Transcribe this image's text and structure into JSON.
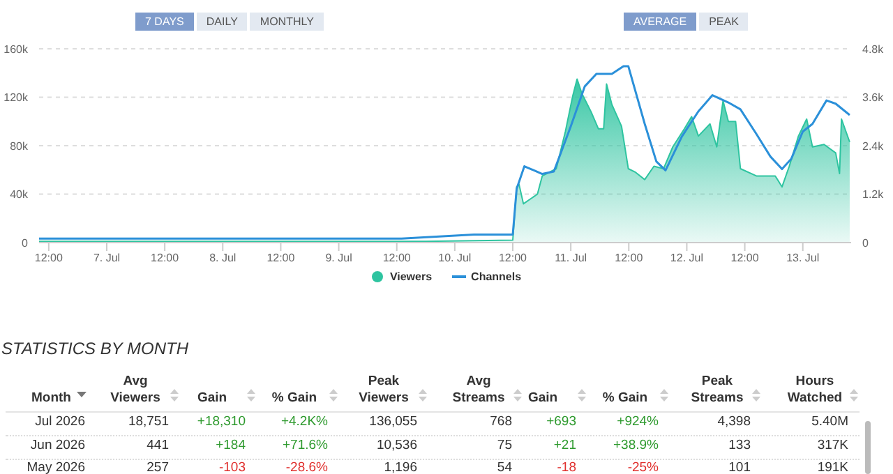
{
  "chart_data": [
    {
      "type": "area",
      "annotations": [
        "7 DAYS",
        "DAILY",
        "MONTHLY",
        "AVERAGE",
        "PEAK"
      ],
      "xlim": [
        "2026-07-06T10:00",
        "2026-07-13T10:00"
      ],
      "xticks": [
        {
          "value": "2026-07-06T12:00",
          "label": "12:00"
        },
        {
          "value": "2026-07-07",
          "label": "7. Jul"
        },
        {
          "value": "2026-07-07T12:00",
          "label": "12:00"
        },
        {
          "value": "2026-07-08",
          "label": "8. Jul"
        },
        {
          "value": "2026-07-08T12:00",
          "label": "12:00"
        },
        {
          "value": "2026-07-09",
          "label": "9. Jul"
        },
        {
          "value": "2026-07-09T12:00",
          "label": "12:00"
        },
        {
          "value": "2026-07-10",
          "label": "10. Jul"
        },
        {
          "value": "2026-07-10T12:00",
          "label": "12:00"
        },
        {
          "value": "2026-07-11",
          "label": "11. Jul"
        },
        {
          "value": "2026-07-11T12:00",
          "label": "12:00"
        },
        {
          "value": "2026-07-12",
          "label": "12. Jul"
        },
        {
          "value": "2026-07-12T12:00",
          "label": "12:00"
        },
        {
          "value": "2026-07-13",
          "label": "13. Jul"
        }
      ],
      "ylim": [
        0,
        160000
      ],
      "yticks": [
        0,
        {
          "value": 40000,
          "label": "40k"
        },
        {
          "value": 80000,
          "label": "80k"
        },
        {
          "value": 120000,
          "label": "120k"
        },
        {
          "value": 160000,
          "label": "160k"
        }
      ],
      "y2lim": [
        0,
        4800
      ],
      "y2ticks": [
        0,
        {
          "value": 1200,
          "label": "1.2k"
        },
        {
          "value": 2400,
          "label": "2.4k"
        },
        {
          "value": 3600,
          "label": "3.6k"
        },
        {
          "value": 4800,
          "label": "4.8k"
        }
      ],
      "grid": "y",
      "legend": "bottom",
      "series": [
        {
          "name": "Viewers",
          "type": "area",
          "color": "#2ec4a0",
          "x": [
            "2026-07-06T10:00",
            "2026-07-07T06:00",
            "2026-07-08T02:00",
            "2026-07-08T22:00",
            "2026-07-09T18:00",
            "2026-07-10T12:00",
            "2026-07-10T12:48",
            "2026-07-10T13:18",
            "2026-07-10T14:12",
            "2026-07-10T17:06",
            "2026-07-10T18:06",
            "2026-07-10T21:00",
            "2026-07-10T22:54",
            "2026-07-11T00:24",
            "2026-07-11T01:18",
            "2026-07-11T02:18",
            "2026-07-11T04:12",
            "2026-07-11T05:42",
            "2026-07-11T06:48",
            "2026-07-11T07:24",
            "2026-07-11T08:30",
            "2026-07-11T10:30",
            "2026-07-11T11:54",
            "2026-07-11T13:24",
            "2026-07-11T15:18",
            "2026-07-11T17:12",
            "2026-07-11T19:12",
            "2026-07-11T21:06",
            "2026-07-11T23:30",
            "2026-07-12T01:00",
            "2026-07-12T02:24",
            "2026-07-12T04:48",
            "2026-07-12T06:12",
            "2026-07-12T07:30",
            "2026-07-12T08:36",
            "2026-07-12T10:06",
            "2026-07-12T11:06",
            "2026-07-12T14:24",
            "2026-07-12T18:18",
            "2026-07-12T19:42",
            "2026-07-12T21:12",
            "2026-07-12T23:06",
            "2026-07-13T00:48",
            "2026-07-13T02:00",
            "2026-07-13T04:24",
            "2026-07-13T06:48",
            "2026-07-13T07:36",
            "2026-07-13T08:00",
            "2026-07-13T09:42"
          ],
          "values": [
            1000,
            1000,
            1000,
            1000,
            1000,
            2000,
            46000,
            48000,
            32000,
            40000,
            55000,
            61000,
            92000,
            121000,
            135000,
            123000,
            108000,
            94000,
            94000,
            131000,
            114000,
            96000,
            61000,
            58000,
            52000,
            63000,
            61000,
            79000,
            94000,
            104000,
            88000,
            98000,
            79000,
            117000,
            100000,
            100000,
            61000,
            55000,
            55000,
            46000,
            63000,
            88000,
            102000,
            79000,
            81000,
            74000,
            57000,
            102000,
            83000
          ]
        },
        {
          "name": "Channels",
          "type": "line",
          "axis": "y2",
          "color": "#2b90d9",
          "x": [
            "2026-07-06T10:00",
            "2026-07-06T20:00",
            "2026-07-07T06:00",
            "2026-07-07T21:00",
            "2026-07-08T12:00",
            "2026-07-09T03:00",
            "2026-07-09T13:00",
            "2026-07-10T04:00",
            "2026-07-10T12:00",
            "2026-07-10T12:48",
            "2026-07-10T14:24",
            "2026-07-10T18:06",
            "2026-07-10T20:30",
            "2026-07-11T00:00",
            "2026-07-11T02:54",
            "2026-07-11T05:18",
            "2026-07-11T08:30",
            "2026-07-11T10:54",
            "2026-07-11T11:54",
            "2026-07-11T15:18",
            "2026-07-11T17:42",
            "2026-07-11T19:36",
            "2026-07-11T23:00",
            "2026-07-12T02:24",
            "2026-07-12T05:18",
            "2026-07-12T08:36",
            "2026-07-12T11:06",
            "2026-07-12T14:24",
            "2026-07-12T17:18",
            "2026-07-12T19:42",
            "2026-07-12T21:36",
            "2026-07-13T00:00",
            "2026-07-13T02:00",
            "2026-07-13T04:54",
            "2026-07-13T06:48",
            "2026-07-13T09:42"
          ],
          "values": [
            100,
            100,
            100,
            100,
            100,
            100,
            100,
            200,
            200,
            1330,
            1890,
            1700,
            1760,
            2880,
            3870,
            4180,
            4180,
            4370,
            4370,
            2940,
            2010,
            1790,
            2630,
            3250,
            3650,
            3470,
            3300,
            2690,
            2130,
            1820,
            2070,
            2750,
            2940,
            3520,
            3440,
            3160
          ]
        }
      ]
    },
    {
      "type": "other",
      "title": "STATISTICS BY MONTH",
      "categories": [
        "Month",
        "Avg Viewers",
        "Gain",
        "% Gain",
        "Peak Viewers",
        "Avg Streams",
        "Gain",
        "% Gain",
        "Peak Streams",
        "Hours Watched"
      ],
      "cell_labels": [
        [
          "Jul 2026",
          "18,751",
          "+18,310",
          "+4.2K%",
          "136,055",
          "768",
          "+693",
          "+924%",
          "4,398",
          "5.40M"
        ],
        [
          "Jun 2026",
          "441",
          "+184",
          "+71.6%",
          "10,536",
          "75",
          "+21",
          "+38.9%",
          "133",
          "317K"
        ],
        [
          "May 2026",
          "257",
          "-103",
          "-28.6%",
          "1,196",
          "54",
          "-18",
          "-25%",
          "101",
          "191K"
        ]
      ]
    }
  ]
}
